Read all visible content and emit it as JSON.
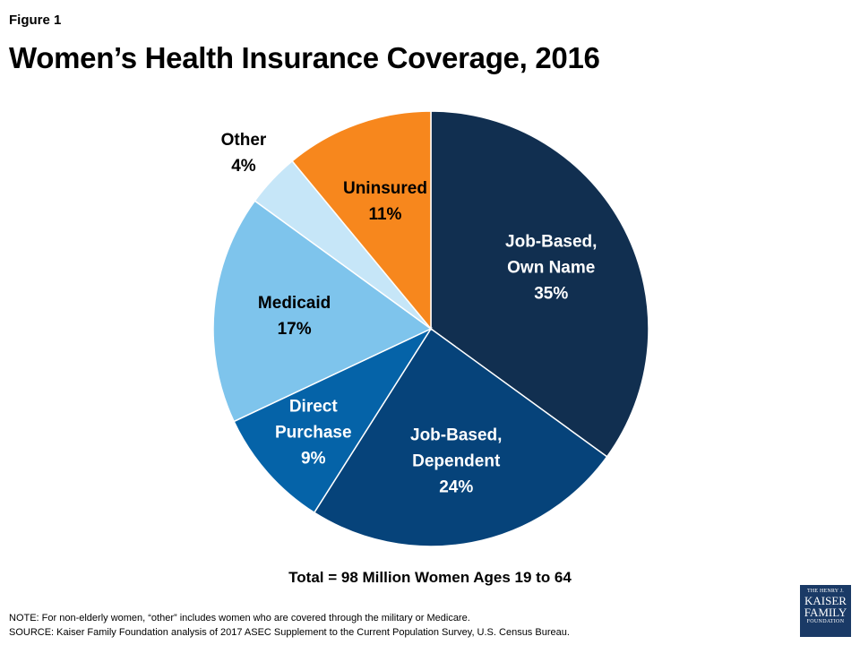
{
  "figure_label": "Figure 1",
  "title": "Women’s Health Insurance Coverage, 2016",
  "total": "Total = 98 Million Women Ages 19 to 64",
  "note": "NOTE:  For non-elderly women, “other” includes women who are covered through the military or Medicare.",
  "source": "SOURCE: Kaiser Family Foundation analysis of 2017 ASEC Supplement to the Current Population Survey, U.S. Census Bureau.",
  "logo": {
    "line1": "THE HENRY J.",
    "line2": "KAISER",
    "line3": "FAMILY",
    "line4": "FOUNDATION"
  },
  "chart_data": {
    "type": "pie",
    "title": "Women’s Health Insurance Coverage, 2016",
    "slices": [
      {
        "label_lines": [
          "Job-Based,",
          "Own Name"
        ],
        "pct_text": "35%",
        "value": 35,
        "color": "#112f50"
      },
      {
        "label_lines": [
          "Job-Based,",
          "Dependent"
        ],
        "pct_text": "24%",
        "value": 24,
        "color": "#06437a"
      },
      {
        "label_lines": [
          "Direct",
          "Purchase"
        ],
        "pct_text": "9%",
        "value": 9,
        "color": "#0563a8"
      },
      {
        "label_lines": [
          "Medicaid"
        ],
        "pct_text": "17%",
        "value": 17,
        "color": "#7ec4ec"
      },
      {
        "label_lines": [
          "Other"
        ],
        "pct_text": "4%",
        "value": 4,
        "color": "#c6e6f8"
      },
      {
        "label_lines": [
          "Uninsured"
        ],
        "pct_text": "11%",
        "value": 11,
        "color": "#f7871d"
      }
    ],
    "start": "12 o'clock",
    "direction": "clockwise"
  }
}
